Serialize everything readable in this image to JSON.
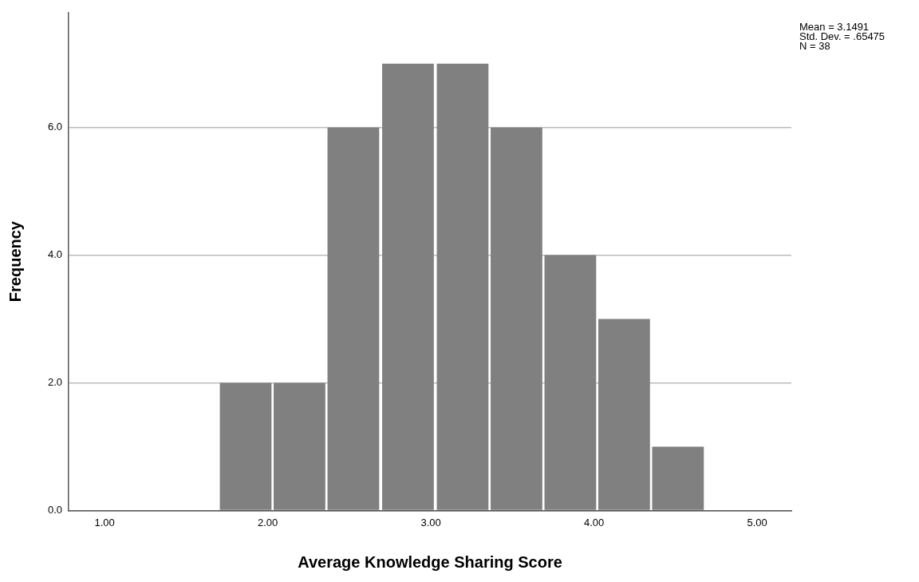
{
  "chart_data": {
    "type": "histogram",
    "xlabel": "Average Knowledge Sharing Score",
    "ylabel": "Frequency",
    "bins": [
      1.7,
      2.03,
      2.36,
      2.69,
      3.03,
      3.36,
      3.69,
      4.02,
      4.35,
      4.68
    ],
    "values": [
      2,
      2,
      6,
      7,
      7,
      6,
      4,
      3,
      1
    ],
    "color": "#808080",
    "xlim": [
      0.78,
      5.21
    ],
    "xticks": [
      {
        "value": 1,
        "label": "1.00"
      },
      {
        "value": 2,
        "label": "2.00"
      },
      {
        "value": 3,
        "label": "3.00"
      },
      {
        "value": 4,
        "label": "4.00"
      },
      {
        "value": 5,
        "label": "5.00"
      }
    ],
    "ylim": [
      0,
      7.8
    ],
    "yticks": [
      {
        "value": 0,
        "label": "0.0"
      },
      {
        "value": 2,
        "label": "2.0"
      },
      {
        "value": 4,
        "label": "4.0"
      },
      {
        "value": 6,
        "label": "6.0"
      }
    ],
    "grid": "y",
    "annotations": [
      "Mean = 3.1491",
      "Std. Dev. = .65475",
      "N = 38"
    ]
  }
}
